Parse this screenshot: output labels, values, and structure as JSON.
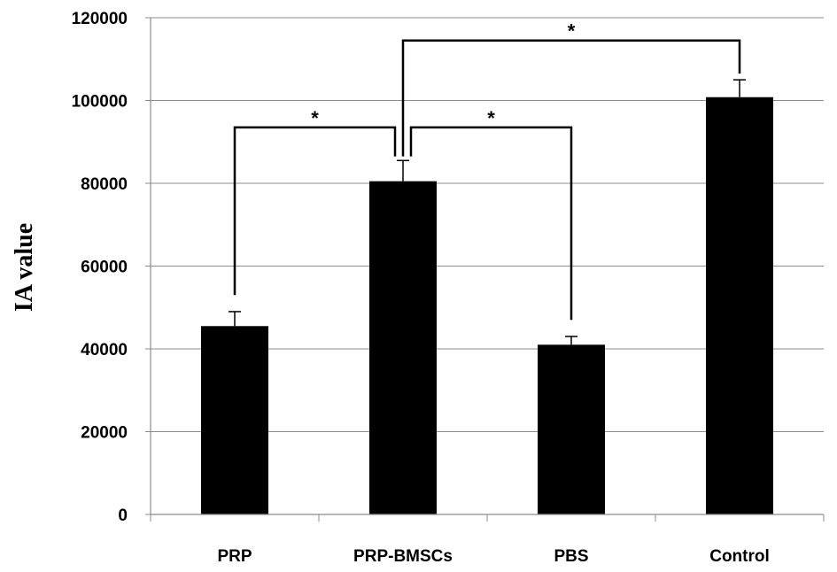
{
  "chart_data": {
    "type": "bar",
    "title": "",
    "xlabel": "",
    "ylabel": "IA value",
    "categories": [
      "PRP",
      "PRP-BMSCs",
      "PBS",
      "Control"
    ],
    "series": [
      {
        "values": [
          45500,
          80500,
          41000,
          100800
        ],
        "errors": [
          3500,
          5000,
          2000,
          4200
        ]
      }
    ],
    "ylim": [
      0,
      120000
    ],
    "yticks": [
      0,
      20000,
      40000,
      60000,
      80000,
      100000,
      120000
    ],
    "ytick_labels": [
      "0",
      "20000",
      "40000",
      "60000",
      "80000",
      "100000",
      "120000"
    ],
    "grid": "horizontal",
    "bar_color": "#000000",
    "significance": [
      {
        "from": "PRP",
        "to": "PRP-BMSCs",
        "label": "*"
      },
      {
        "from": "PRP-BMSCs",
        "to": "PBS",
        "label": "*"
      },
      {
        "from": "PRP-BMSCs",
        "to": "Control",
        "label": "*"
      }
    ]
  }
}
